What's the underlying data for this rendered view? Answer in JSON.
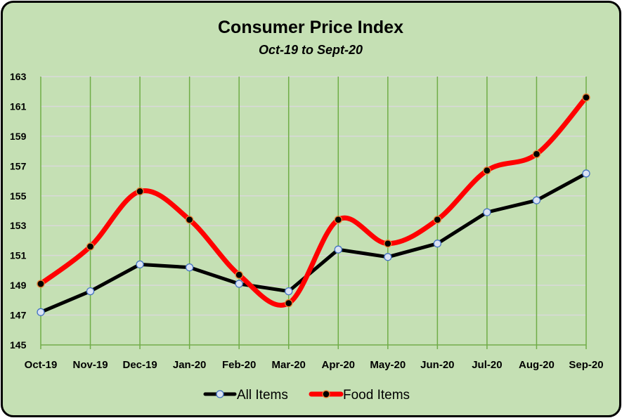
{
  "chart_data": {
    "type": "line",
    "title": "Consumer Price Index",
    "subtitle": "Oct-19 to Sept-20",
    "categories": [
      "Oct-19",
      "Nov-19",
      "Dec-19",
      "Jan-20",
      "Feb-20",
      "Mar-20",
      "Apr-20",
      "May-20",
      "Jun-20",
      "Jul-20",
      "Aug-20",
      "Sep-20"
    ],
    "ylim": [
      145,
      163
    ],
    "yticks": [
      "145",
      "147",
      "149",
      "151",
      "153",
      "155",
      "157",
      "159",
      "161",
      "163"
    ],
    "grid": true,
    "legend": "bottom",
    "series": [
      {
        "name": "All Items",
        "color": "#000000",
        "marker": "#dae3f3",
        "marker_edge": "#4472c4",
        "smooth": false,
        "values": [
          147.2,
          148.6,
          150.4,
          150.2,
          149.1,
          148.6,
          151.4,
          150.9,
          151.8,
          153.9,
          154.7,
          156.5
        ]
      },
      {
        "name": "Food Items",
        "color": "#ff0000",
        "marker": "#000000",
        "marker_edge": "#ed7d31",
        "smooth": true,
        "values": [
          149.1,
          151.6,
          155.3,
          153.4,
          149.7,
          147.8,
          153.4,
          151.8,
          153.4,
          156.7,
          157.8,
          161.6
        ]
      }
    ]
  },
  "colors": {
    "background": "#c5e0b4",
    "vgrid": "#70ad47",
    "hgrid": "#d9d9d9"
  }
}
